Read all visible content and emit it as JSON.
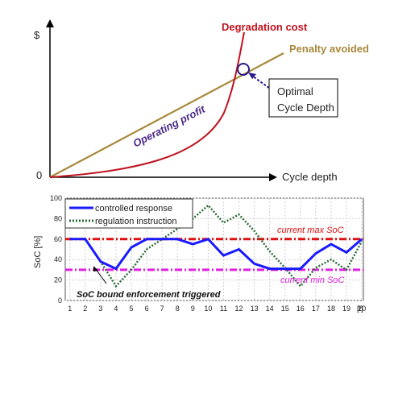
{
  "chart_data": [
    {
      "type": "line",
      "title": "",
      "y_axis_symbol": "$",
      "origin_label": "0",
      "xlabel": "Cycle depth",
      "curves": [
        {
          "name": "Degradation cost",
          "color": "#c0131f",
          "shape": "convex increasing"
        },
        {
          "name": "Penalty avoided",
          "color": "#a8893b",
          "shape": "linear increasing"
        }
      ],
      "region_label": "Operating profit",
      "annotation": {
        "text_line1": "Optimal",
        "text_line2": "Cycle Depth",
        "marker": "circle at intersection"
      }
    },
    {
      "type": "line",
      "ylabel": "SoC [%]",
      "xlabel_unit": "[t]",
      "x": [
        1,
        2,
        3,
        4,
        5,
        6,
        7,
        8,
        9,
        10,
        11,
        12,
        13,
        14,
        15,
        16,
        17,
        18,
        19,
        20
      ],
      "ylim": [
        0,
        100
      ],
      "yticks": [
        0,
        20,
        40,
        60,
        80,
        100
      ],
      "grid": true,
      "legend_position": "top-left",
      "series": [
        {
          "name": "controlled response",
          "color": "#1a1aff",
          "style": "solid",
          "values": [
            60,
            60,
            38,
            31,
            52,
            60,
            60,
            60,
            55,
            60,
            44,
            50,
            36,
            31,
            31,
            31,
            46,
            55,
            47,
            60
          ]
        },
        {
          "name": "regulation instruction",
          "color": "#2e6b3a",
          "style": "dotted",
          "values": [
            60,
            60,
            38,
            14,
            30,
            50,
            60,
            70,
            80,
            93,
            76,
            84,
            68,
            48,
            32,
            14,
            32,
            40,
            30,
            58
          ]
        }
      ],
      "reference_lines": [
        {
          "label": "current max SoC",
          "value": 60,
          "color": "#e01010"
        },
        {
          "label": "current min SoC",
          "value": 30,
          "color": "#e020e0"
        }
      ],
      "annotation": {
        "text": "SoC bound enforcement triggered",
        "at_x": 3
      }
    }
  ]
}
